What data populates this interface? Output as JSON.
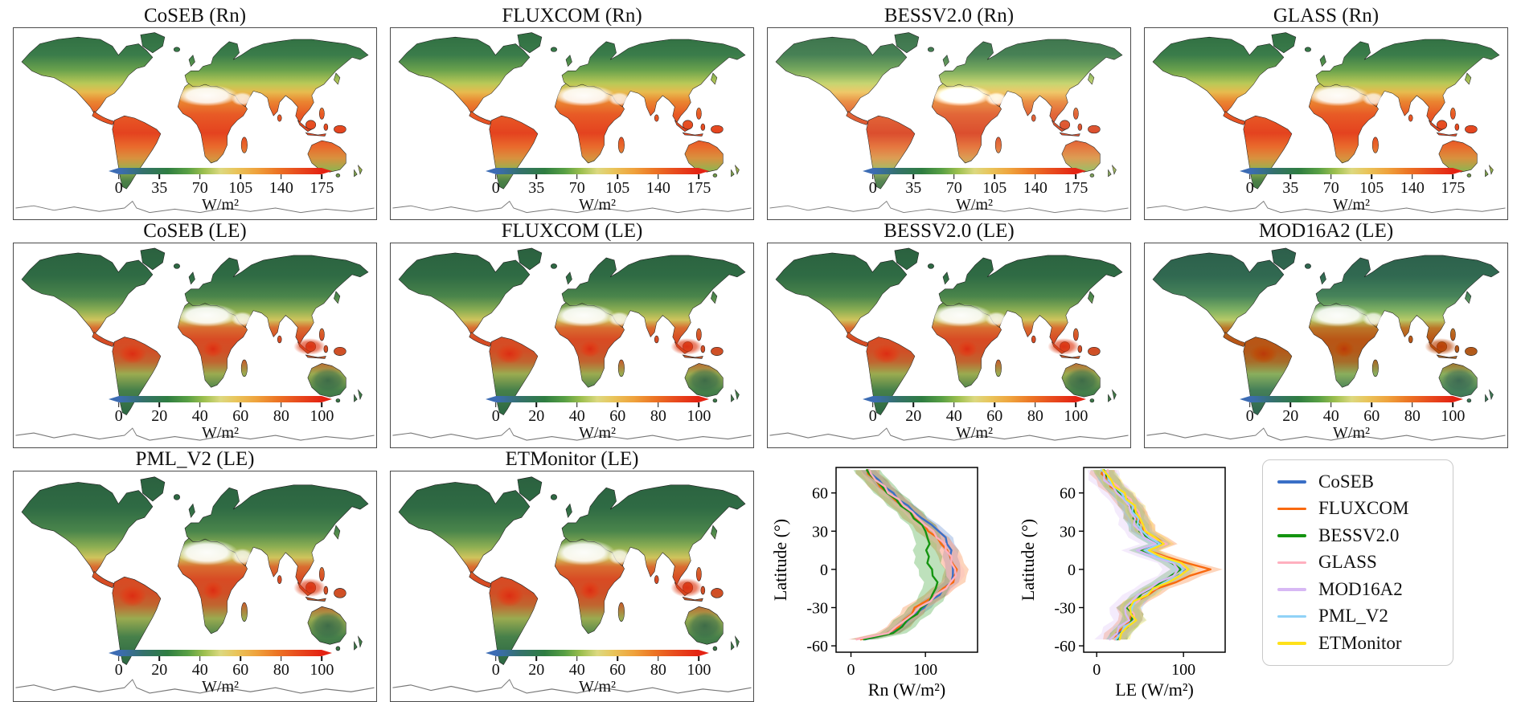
{
  "figure": {
    "map_panels": [
      {
        "title": "CoSEB (Rn)",
        "variant": "rn",
        "tone": "default",
        "colorbar": {
          "ticks": [
            "0",
            "35",
            "70",
            "105",
            "140",
            "175"
          ],
          "unit": "W/m²"
        }
      },
      {
        "title": "FLUXCOM (Rn)",
        "variant": "rn",
        "tone": "default",
        "colorbar": {
          "ticks": [
            "0",
            "35",
            "70",
            "105",
            "140",
            "175"
          ],
          "unit": "W/m²"
        }
      },
      {
        "title": "BESSV2.0 (Rn)",
        "variant": "rn",
        "tone": "pale",
        "colorbar": {
          "ticks": [
            "0",
            "35",
            "70",
            "105",
            "140",
            "175"
          ],
          "unit": "W/m²"
        }
      },
      {
        "title": "GLASS (Rn)",
        "variant": "rn",
        "tone": "default",
        "colorbar": {
          "ticks": [
            "0",
            "35",
            "70",
            "105",
            "140",
            "175"
          ],
          "unit": "W/m²"
        }
      },
      {
        "title": "CoSEB (LE)",
        "variant": "le",
        "tone": "default",
        "colorbar": {
          "ticks": [
            "0",
            "20",
            "40",
            "60",
            "80",
            "100"
          ],
          "unit": "W/m²"
        }
      },
      {
        "title": "FLUXCOM (LE)",
        "variant": "le",
        "tone": "default",
        "colorbar": {
          "ticks": [
            "0",
            "20",
            "40",
            "60",
            "80",
            "100"
          ],
          "unit": "W/m²"
        }
      },
      {
        "title": "BESSV2.0 (LE)",
        "variant": "le",
        "tone": "default",
        "colorbar": {
          "ticks": [
            "0",
            "20",
            "40",
            "60",
            "80",
            "100"
          ],
          "unit": "W/m²"
        }
      },
      {
        "title": "MOD16A2 (LE)",
        "variant": "le",
        "tone": "teal",
        "colorbar": {
          "ticks": [
            "0",
            "20",
            "40",
            "60",
            "80",
            "100"
          ],
          "unit": "W/m²"
        }
      },
      {
        "title": "PML_V2 (LE)",
        "variant": "le",
        "tone": "default",
        "colorbar": {
          "ticks": [
            "0",
            "20",
            "40",
            "60",
            "80",
            "100"
          ],
          "unit": "W/m²"
        }
      },
      {
        "title": "ETMonitor (LE)",
        "variant": "le",
        "tone": "default",
        "colorbar": {
          "ticks": [
            "0",
            "20",
            "40",
            "60",
            "80",
            "100"
          ],
          "unit": "W/m²"
        }
      }
    ]
  },
  "chart_data": [
    {
      "type": "line",
      "title": "",
      "xlabel": "Rn (W/m²)",
      "ylabel": "Latitude (°)",
      "xlim": [
        -20,
        170
      ],
      "ylim": [
        -65,
        80
      ],
      "xticks": [
        0,
        100
      ],
      "yticks": [
        60,
        30,
        0,
        -30,
        -60
      ],
      "latitudes": [
        -55,
        -50,
        -45,
        -40,
        -35,
        -30,
        -25,
        -20,
        -15,
        -10,
        -5,
        0,
        5,
        10,
        15,
        20,
        25,
        30,
        35,
        40,
        45,
        50,
        55,
        60,
        65,
        70,
        75,
        78
      ],
      "series": [
        {
          "name": "CoSEB",
          "color": "#3a6fc6",
          "band": 10,
          "values": [
            18,
            58,
            68,
            78,
            88,
            98,
            108,
            118,
            127,
            134,
            138,
            137,
            135,
            134,
            132,
            130,
            124,
            118,
            106,
            94,
            84,
            74,
            64,
            54,
            46,
            36,
            28,
            24
          ]
        },
        {
          "name": "FLUXCOM",
          "color": "#f9690f",
          "band": 16,
          "values": [
            12,
            52,
            62,
            72,
            80,
            85,
            100,
            112,
            124,
            134,
            140,
            139,
            136,
            132,
            128,
            122,
            114,
            106,
            97,
            88,
            79,
            70,
            60,
            50,
            42,
            33,
            26,
            22
          ]
        },
        {
          "name": "BESSV2.0",
          "color": "#149410",
          "band": 18,
          "values": [
            16,
            56,
            66,
            76,
            86,
            96,
            104,
            110,
            114,
            116,
            112,
            108,
            106,
            104,
            104,
            106,
            104,
            102,
            95,
            87,
            78,
            69,
            59,
            49,
            41,
            32,
            25,
            21
          ]
        },
        {
          "name": "GLASS",
          "color": "#ffb0bf",
          "band": 12,
          "values": [
            10,
            50,
            62,
            74,
            84,
            94,
            106,
            117,
            127,
            136,
            141,
            140,
            136,
            133,
            129,
            124,
            116,
            108,
            98,
            89,
            80,
            71,
            61,
            51,
            43,
            34,
            26,
            22
          ]
        }
      ]
    },
    {
      "type": "line",
      "title": "",
      "xlabel": "LE (W/m²)",
      "ylabel": "Latitude (°)",
      "xlim": [
        -15,
        148
      ],
      "ylim": [
        -65,
        80
      ],
      "xticks": [
        0,
        100
      ],
      "yticks": [
        60,
        30,
        0,
        -30,
        -60
      ],
      "latitudes": [
        -55,
        -50,
        -45,
        -40,
        -35,
        -30,
        -25,
        -20,
        -15,
        -10,
        -5,
        0,
        5,
        10,
        15,
        20,
        25,
        30,
        35,
        40,
        45,
        50,
        55,
        60,
        65,
        70,
        75,
        78
      ],
      "series": [
        {
          "name": "CoSEB",
          "color": "#3a6fc6",
          "band": 10,
          "values": [
            24,
            28,
            34,
            44,
            42,
            39,
            46,
            56,
            66,
            80,
            95,
            104,
            95,
            74,
            58,
            77,
            63,
            54,
            51,
            48,
            45,
            41,
            35,
            29,
            21,
            15,
            11,
            9
          ]
        },
        {
          "name": "FLUXCOM",
          "color": "#f9690f",
          "band": 14,
          "values": [
            20,
            25,
            30,
            40,
            38,
            36,
            45,
            57,
            70,
            88,
            108,
            128,
            104,
            78,
            58,
            80,
            66,
            56,
            52,
            48,
            44,
            40,
            34,
            27,
            19,
            13,
            9,
            7
          ]
        },
        {
          "name": "BESSV2.0",
          "color": "#149410",
          "band": 12,
          "values": [
            22,
            27,
            33,
            41,
            39,
            36,
            43,
            52,
            62,
            75,
            88,
            96,
            90,
            70,
            52,
            72,
            60,
            51,
            48,
            45,
            42,
            39,
            33,
            27,
            19,
            13,
            10,
            8
          ]
        },
        {
          "name": "GLASS",
          "color": "#ffb0bf",
          "band": 10,
          "values": [
            23,
            28,
            35,
            45,
            43,
            40,
            47,
            57,
            67,
            81,
            95,
            105,
            96,
            74,
            57,
            78,
            64,
            55,
            52,
            49,
            46,
            42,
            36,
            30,
            22,
            16,
            12,
            10
          ]
        },
        {
          "name": "MOD16A2",
          "color": "#d7b8f4",
          "band": 18,
          "values": [
            18,
            22,
            28,
            36,
            34,
            32,
            39,
            48,
            58,
            72,
            85,
            94,
            86,
            64,
            46,
            66,
            56,
            48,
            45,
            43,
            41,
            38,
            32,
            26,
            18,
            12,
            8,
            6
          ]
        },
        {
          "name": "PML_V2",
          "color": "#90d2f7",
          "band": 12,
          "values": [
            21,
            26,
            32,
            42,
            40,
            38,
            45,
            55,
            66,
            80,
            94,
            102,
            93,
            72,
            55,
            75,
            62,
            53,
            50,
            47,
            44,
            40,
            34,
            28,
            20,
            14,
            10,
            8
          ]
        },
        {
          "name": "ETMonitor",
          "color": "#ffe11a",
          "band": 12,
          "values": [
            25,
            30,
            36,
            46,
            42,
            38,
            46,
            58,
            68,
            83,
            97,
            107,
            97,
            76,
            58,
            79,
            65,
            56,
            52,
            48,
            45,
            41,
            35,
            29,
            21,
            15,
            11,
            9
          ]
        }
      ]
    }
  ],
  "legend": {
    "entries": [
      {
        "label": "CoSEB",
        "color": "#3a6fc6"
      },
      {
        "label": "FLUXCOM",
        "color": "#f9690f"
      },
      {
        "label": "BESSV2.0",
        "color": "#149410"
      },
      {
        "label": "GLASS",
        "color": "#ffb0bf"
      },
      {
        "label": "MOD16A2",
        "color": "#d7b8f4"
      },
      {
        "label": "PML_V2",
        "color": "#90d2f7"
      },
      {
        "label": "ETMonitor",
        "color": "#ffe11a"
      }
    ]
  }
}
